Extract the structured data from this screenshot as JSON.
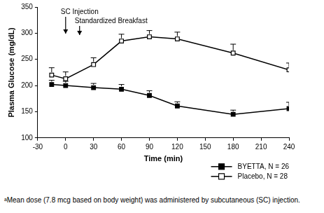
{
  "chart_data": {
    "type": "line",
    "x_label": "Time (min)",
    "y_label": "Plasma Glucose (mg/dL)",
    "x": [
      -15,
      0,
      30,
      60,
      90,
      120,
      180,
      240
    ],
    "series": [
      {
        "name": "BYETTA, N = 26",
        "color": "#000000",
        "marker": "square",
        "values": [
          202,
          200,
          196,
          193,
          181,
          161,
          145,
          156
        ],
        "errors": [
          8,
          8,
          8,
          9,
          9,
          8,
          8,
          12
        ]
      },
      {
        "name": "Placebo, N = 28",
        "color": "#000000",
        "marker": "open_square",
        "values": [
          220,
          213,
          240,
          285,
          293,
          289,
          262,
          230
        ],
        "errors": [
          14,
          13,
          13,
          13,
          12,
          13,
          17,
          13
        ]
      }
    ],
    "xlim": [
      -30,
      240
    ],
    "xticks": [
      -30,
      0,
      30,
      60,
      90,
      120,
      150,
      180,
      210,
      240
    ],
    "ylim": [
      100,
      350
    ],
    "yticks": [
      100,
      150,
      200,
      250,
      300,
      350
    ],
    "grid": false,
    "legend": "bottom-right",
    "annotations": [
      {
        "text": "SC Injection",
        "x": 0
      },
      {
        "text": "Standardized Breakfast",
        "x": 15
      }
    ],
    "footnote": "ᵃMean dose (7.8 mcg based on body weight) was administered by subcutaneous (SC) injection."
  }
}
